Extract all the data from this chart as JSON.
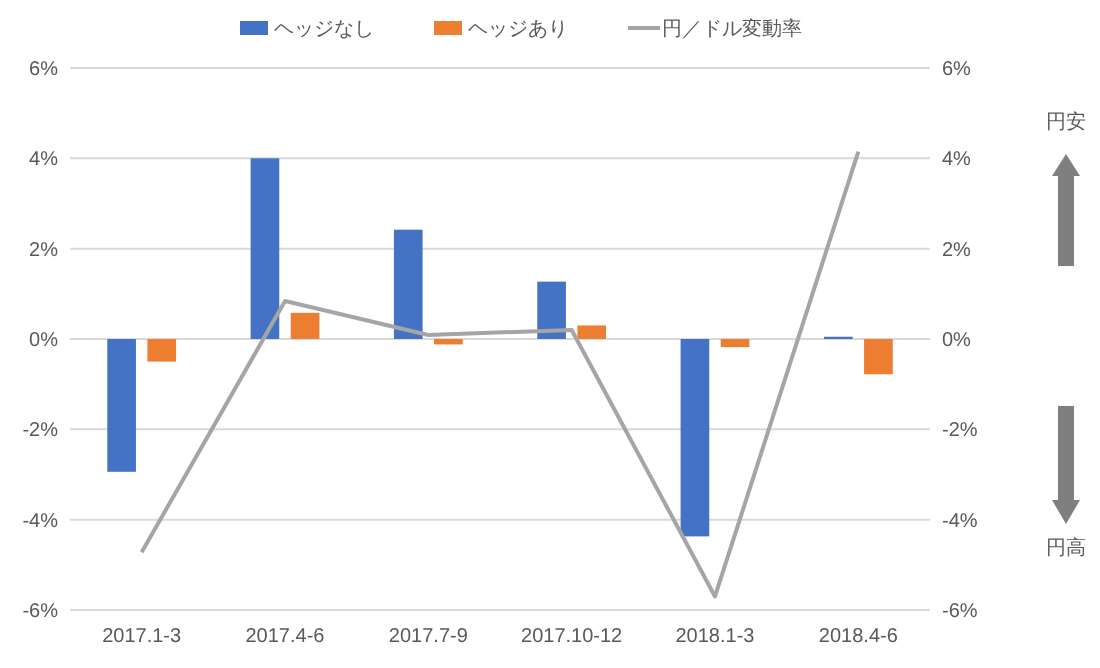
{
  "chart_data": {
    "type": "bar",
    "categories": [
      "2017.1-3",
      "2017.4-6",
      "2017.7-9",
      "2017.10-12",
      "2018.1-3",
      "2018.4-6"
    ],
    "series": [
      {
        "name": "ヘッジなし",
        "color": "#4472c4",
        "values": [
          -2.94,
          4.0,
          2.42,
          1.27,
          -4.37,
          0.05
        ]
      },
      {
        "name": "ヘッジあり",
        "color": "#ed7d31",
        "values": [
          -0.5,
          0.58,
          -0.12,
          0.3,
          -0.18,
          -0.78
        ]
      },
      {
        "name": "円／ドル変動率",
        "type": "line",
        "axis": "y2",
        "color": "#a5a5a5",
        "values": [
          -4.72,
          0.84,
          0.09,
          0.2,
          -5.7,
          4.15
        ]
      }
    ],
    "ylim": [
      -6,
      6
    ],
    "yticks": [
      {
        "value": -6,
        "label": "-6%"
      },
      {
        "value": -4,
        "label": "-4%"
      },
      {
        "value": -2,
        "label": "-2%"
      },
      {
        "value": 0,
        "label": "0%"
      },
      {
        "value": 2,
        "label": "2%"
      },
      {
        "value": 4,
        "label": "4%"
      },
      {
        "value": 6,
        "label": "6%"
      }
    ],
    "y2lim": [
      -6,
      6
    ],
    "y2ticks": [
      {
        "value": -6,
        "label": "-6%"
      },
      {
        "value": -4,
        "label": "-4%"
      },
      {
        "value": -2,
        "label": "-2%"
      },
      {
        "value": 0,
        "label": "0%"
      },
      {
        "value": 2,
        "label": "2%"
      },
      {
        "value": 4,
        "label": "4%"
      },
      {
        "value": 6,
        "label": "6%"
      }
    ],
    "grid": "y",
    "legend": "top",
    "marker": "none",
    "line_style": "solid",
    "annotations": [
      "円安",
      "円高"
    ]
  }
}
